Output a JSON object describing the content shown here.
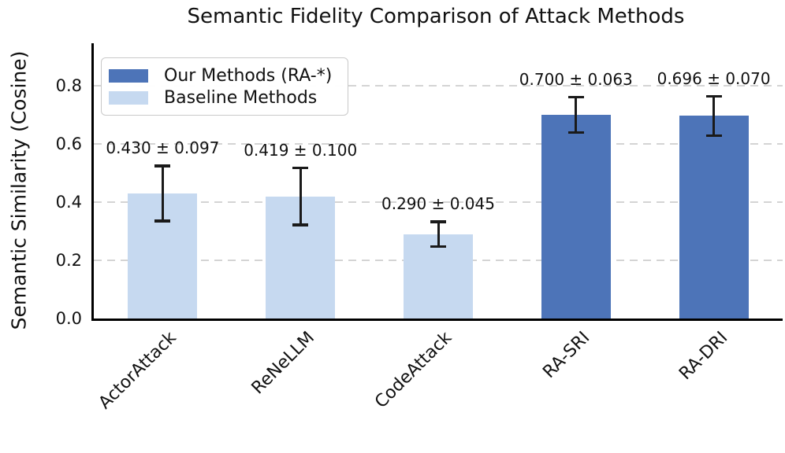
{
  "chart_data": {
    "type": "bar",
    "title": "Semantic Fidelity Comparison of Attack Methods",
    "ylabel": "Semantic Similarity (Cosine)",
    "xlabel": "",
    "categories": [
      "ActorAttack",
      "ReNeLLM",
      "CodeAttack",
      "RA-SRI",
      "RA-DRI"
    ],
    "values": [
      0.43,
      0.419,
      0.29,
      0.7,
      0.696
    ],
    "errors": [
      0.097,
      0.1,
      0.045,
      0.063,
      0.07
    ],
    "bar_labels": [
      "0.430 ± 0.097",
      "0.419 ± 0.100",
      "0.290 ± 0.045",
      "0.700 ± 0.063",
      "0.696 ± 0.070"
    ],
    "bar_series": [
      "baseline",
      "baseline",
      "baseline",
      "ours",
      "ours"
    ],
    "legend": {
      "position": "upper-left",
      "entries": [
        {
          "label": "Our Methods (RA-*)",
          "series": "ours"
        },
        {
          "label": "Baseline Methods",
          "series": "baseline"
        }
      ]
    },
    "colors": {
      "ours": "#4d74b8",
      "baseline": "#c6d9f0",
      "gridline": "#d4d4d4",
      "error_bar": "#1a1a1a",
      "axis": "#000000"
    },
    "ytick_labels": [
      "0.0",
      "0.2",
      "0.4",
      "0.6",
      "0.8"
    ],
    "ytick_values": [
      0,
      0.2,
      0.4,
      0.6,
      0.8
    ],
    "ylim": [
      0,
      0.95
    ],
    "grid": "horizontal dashed",
    "error_bars": true
  }
}
